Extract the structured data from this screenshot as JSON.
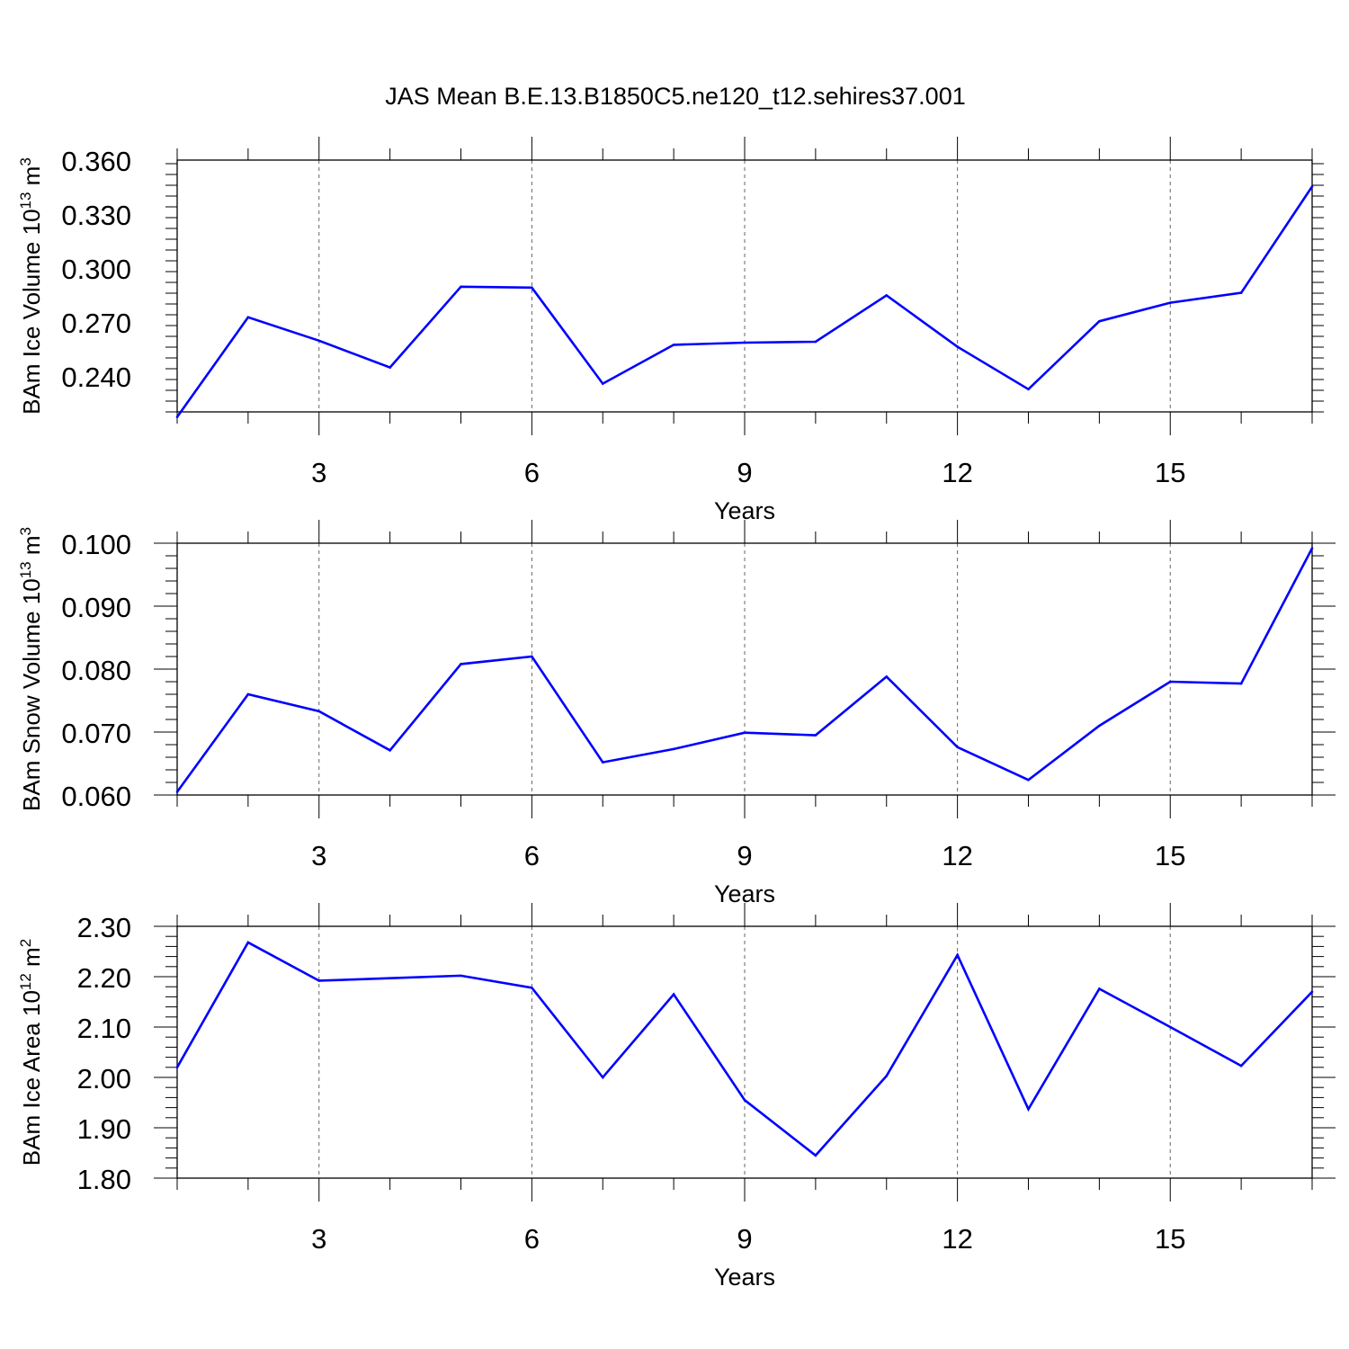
{
  "title": "JAS Mean B.E.13.B1850C5.ne120_t12.sehires37.001",
  "colors": {
    "series": "#0000ff",
    "axis": "#000000",
    "grid": "#000000"
  },
  "chart_data": [
    {
      "type": "line",
      "title": "JAS Mean B.E.13.B1850C5.ne120_t12.sehires37.001",
      "xlabel": "Years",
      "ylabel": {
        "main": "BAm Ice Volume 10",
        "sup1": "13",
        "mid": " m",
        "sup2": "3"
      },
      "x": [
        1,
        2,
        3,
        4,
        5,
        6,
        7,
        8,
        9,
        10,
        11,
        12,
        13,
        14,
        15,
        16,
        17
      ],
      "values": [
        0.2172,
        0.2726,
        0.2596,
        0.2447,
        0.2896,
        0.2891,
        0.2357,
        0.2573,
        0.2585,
        0.259,
        0.2848,
        0.2562,
        0.2326,
        0.2704,
        0.2807,
        0.2862,
        0.3453
      ],
      "xlim": [
        1,
        17
      ],
      "ylim": [
        0.22,
        0.36
      ],
      "xticks": [
        3,
        6,
        9,
        12,
        15
      ],
      "xtick_labels": [
        "3",
        "6",
        "9",
        "12",
        "15"
      ],
      "yticks": [
        0.24,
        0.27,
        0.3,
        0.33,
        0.36
      ],
      "ytick_labels": [
        "0.240",
        "0.270",
        "0.300",
        "0.330",
        "0.360"
      ],
      "yminor_step": 0.006,
      "grid": "x-dashed"
    },
    {
      "type": "line",
      "xlabel": "Years",
      "ylabel": {
        "main": "BAm Snow Volume 10",
        "sup1": "13",
        "mid": " m",
        "sup2": "3"
      },
      "x": [
        1,
        2,
        3,
        4,
        5,
        6,
        7,
        8,
        9,
        10,
        11,
        12,
        13,
        14,
        15,
        16,
        17
      ],
      "values": [
        0.0605,
        0.076,
        0.0733,
        0.0671,
        0.0808,
        0.082,
        0.0652,
        0.0673,
        0.0699,
        0.0695,
        0.0788,
        0.0676,
        0.0624,
        0.071,
        0.078,
        0.0777,
        0.0992
      ],
      "xlim": [
        1,
        17
      ],
      "ylim": [
        0.06,
        0.1
      ],
      "xticks": [
        3,
        6,
        9,
        12,
        15
      ],
      "xtick_labels": [
        "3",
        "6",
        "9",
        "12",
        "15"
      ],
      "yticks": [
        0.06,
        0.07,
        0.08,
        0.09,
        0.1
      ],
      "ytick_labels": [
        "0.060",
        "0.070",
        "0.080",
        "0.090",
        "0.100"
      ],
      "yminor_step": 0.002,
      "grid": "x-dashed"
    },
    {
      "type": "line",
      "xlabel": "Years",
      "ylabel": {
        "main": "BAm Ice Area 10",
        "sup1": "12",
        "mid": " m",
        "sup2": "2"
      },
      "x": [
        1,
        2,
        3,
        4,
        5,
        6,
        7,
        8,
        9,
        10,
        11,
        12,
        13,
        14,
        15,
        16,
        17
      ],
      "values": [
        2.02,
        2.268,
        2.192,
        2.197,
        2.202,
        2.178,
        2.0,
        2.165,
        1.955,
        1.845,
        2.003,
        2.243,
        1.937,
        2.176,
        2.1,
        2.023,
        2.17
      ],
      "xlim": [
        1,
        17
      ],
      "ylim": [
        1.8,
        2.3
      ],
      "xticks": [
        3,
        6,
        9,
        12,
        15
      ],
      "xtick_labels": [
        "3",
        "6",
        "9",
        "12",
        "15"
      ],
      "yticks": [
        1.8,
        1.9,
        2.0,
        2.1,
        2.2,
        2.3
      ],
      "ytick_labels": [
        "1.80",
        "1.90",
        "2.00",
        "2.10",
        "2.20",
        "2.30"
      ],
      "yminor_step": 0.02,
      "grid": "x-dashed"
    }
  ]
}
